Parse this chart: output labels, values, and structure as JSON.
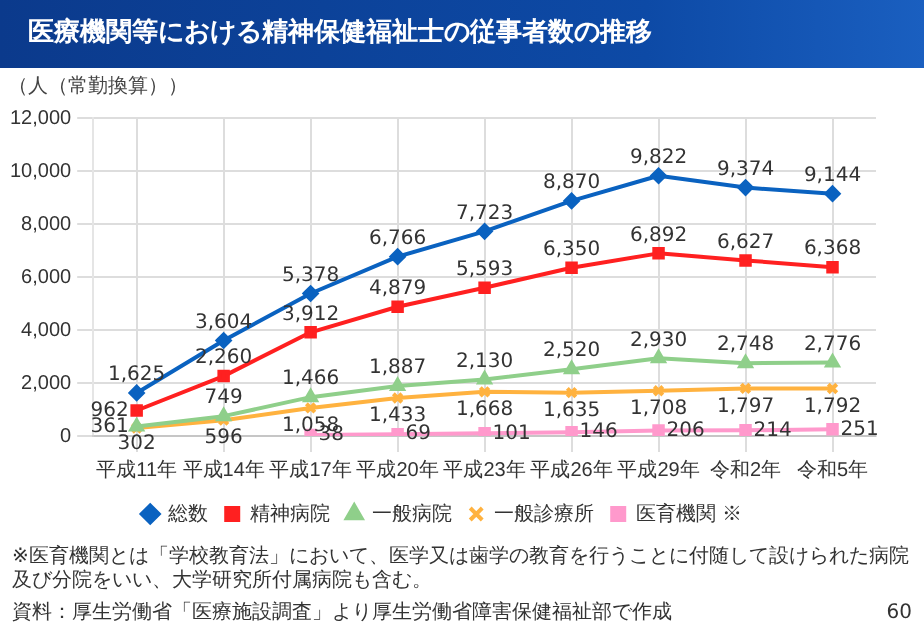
{
  "chart_data": {
    "type": "line",
    "title": "医療機関等における精神保健福祉士の従事者数の推移",
    "ylabel": "（人（常勤換算））",
    "categories": [
      "平成11年",
      "平成14年",
      "平成17年",
      "平成20年",
      "平成23年",
      "平成26年",
      "平成29年",
      "令和2年",
      "令和5年"
    ],
    "series": [
      {
        "name": "総数",
        "color": "#0a62c0",
        "marker": "diamond",
        "values": [
          1625,
          3604,
          5378,
          6766,
          7723,
          8870,
          9822,
          9374,
          9144
        ],
        "value_labels": [
          "1,625",
          "3,604",
          "5,378",
          "6,766",
          "7,723",
          "8,870",
          "9,822",
          "9,374",
          "9,144"
        ]
      },
      {
        "name": "精神病院",
        "color": "#ff2020",
        "marker": "square",
        "values": [
          962,
          2260,
          3912,
          4879,
          5593,
          6350,
          6892,
          6627,
          6368
        ],
        "value_labels": [
          "962",
          "2,260",
          "3,912",
          "4,879",
          "5,593",
          "6,350",
          "6,892",
          "6,627",
          "6,368"
        ]
      },
      {
        "name": "一般病院",
        "color": "#8fcf8a",
        "marker": "triangle",
        "values": [
          361,
          749,
          1466,
          1887,
          2130,
          2520,
          2930,
          2748,
          2776
        ],
        "value_labels": [
          "361",
          "749",
          "1,466",
          "1,887",
          "2,130",
          "2,520",
          "2,930",
          "2,748",
          "2,776"
        ]
      },
      {
        "name": "一般診療所",
        "color": "#ffb23f",
        "marker": "cross",
        "values": [
          302,
          596,
          1058,
          1433,
          1668,
          1635,
          1708,
          1797,
          1792
        ],
        "value_labels": [
          "302",
          "596",
          "1,058",
          "1,433",
          "1,668",
          "1,635",
          "1,708",
          "1,797",
          "1,792"
        ]
      },
      {
        "name": "医育機関 ※",
        "color": "#ff99cc",
        "marker": "square",
        "values": [
          null,
          null,
          38,
          69,
          101,
          146,
          206,
          214,
          251
        ],
        "value_labels": [
          null,
          null,
          "38",
          "69",
          "101",
          "146",
          "206",
          "214",
          "251"
        ]
      }
    ],
    "ylim": [
      0,
      12000
    ],
    "yticks": [
      0,
      {
        "value": 2000,
        "label": "2,000"
      },
      {
        "value": 4000,
        "label": "4,000"
      },
      {
        "value": 6000,
        "label": "6,000"
      },
      {
        "value": 8000,
        "label": "8,000"
      },
      {
        "value": 10000,
        "label": "10,000"
      },
      {
        "value": 12000,
        "label": "12,000"
      }
    ],
    "grid": true,
    "legend": "bottom",
    "annotations": [
      "※医育機関とは「学校教育法」において、医学又は歯学の教育を行うことに付随して設けられた病院及び分院をいい、大学研究所付属病院も含む。",
      "資料：厚生労働省「医療施設調査」より厚生労働省障害保健福祉部で作成",
      "60"
    ]
  }
}
